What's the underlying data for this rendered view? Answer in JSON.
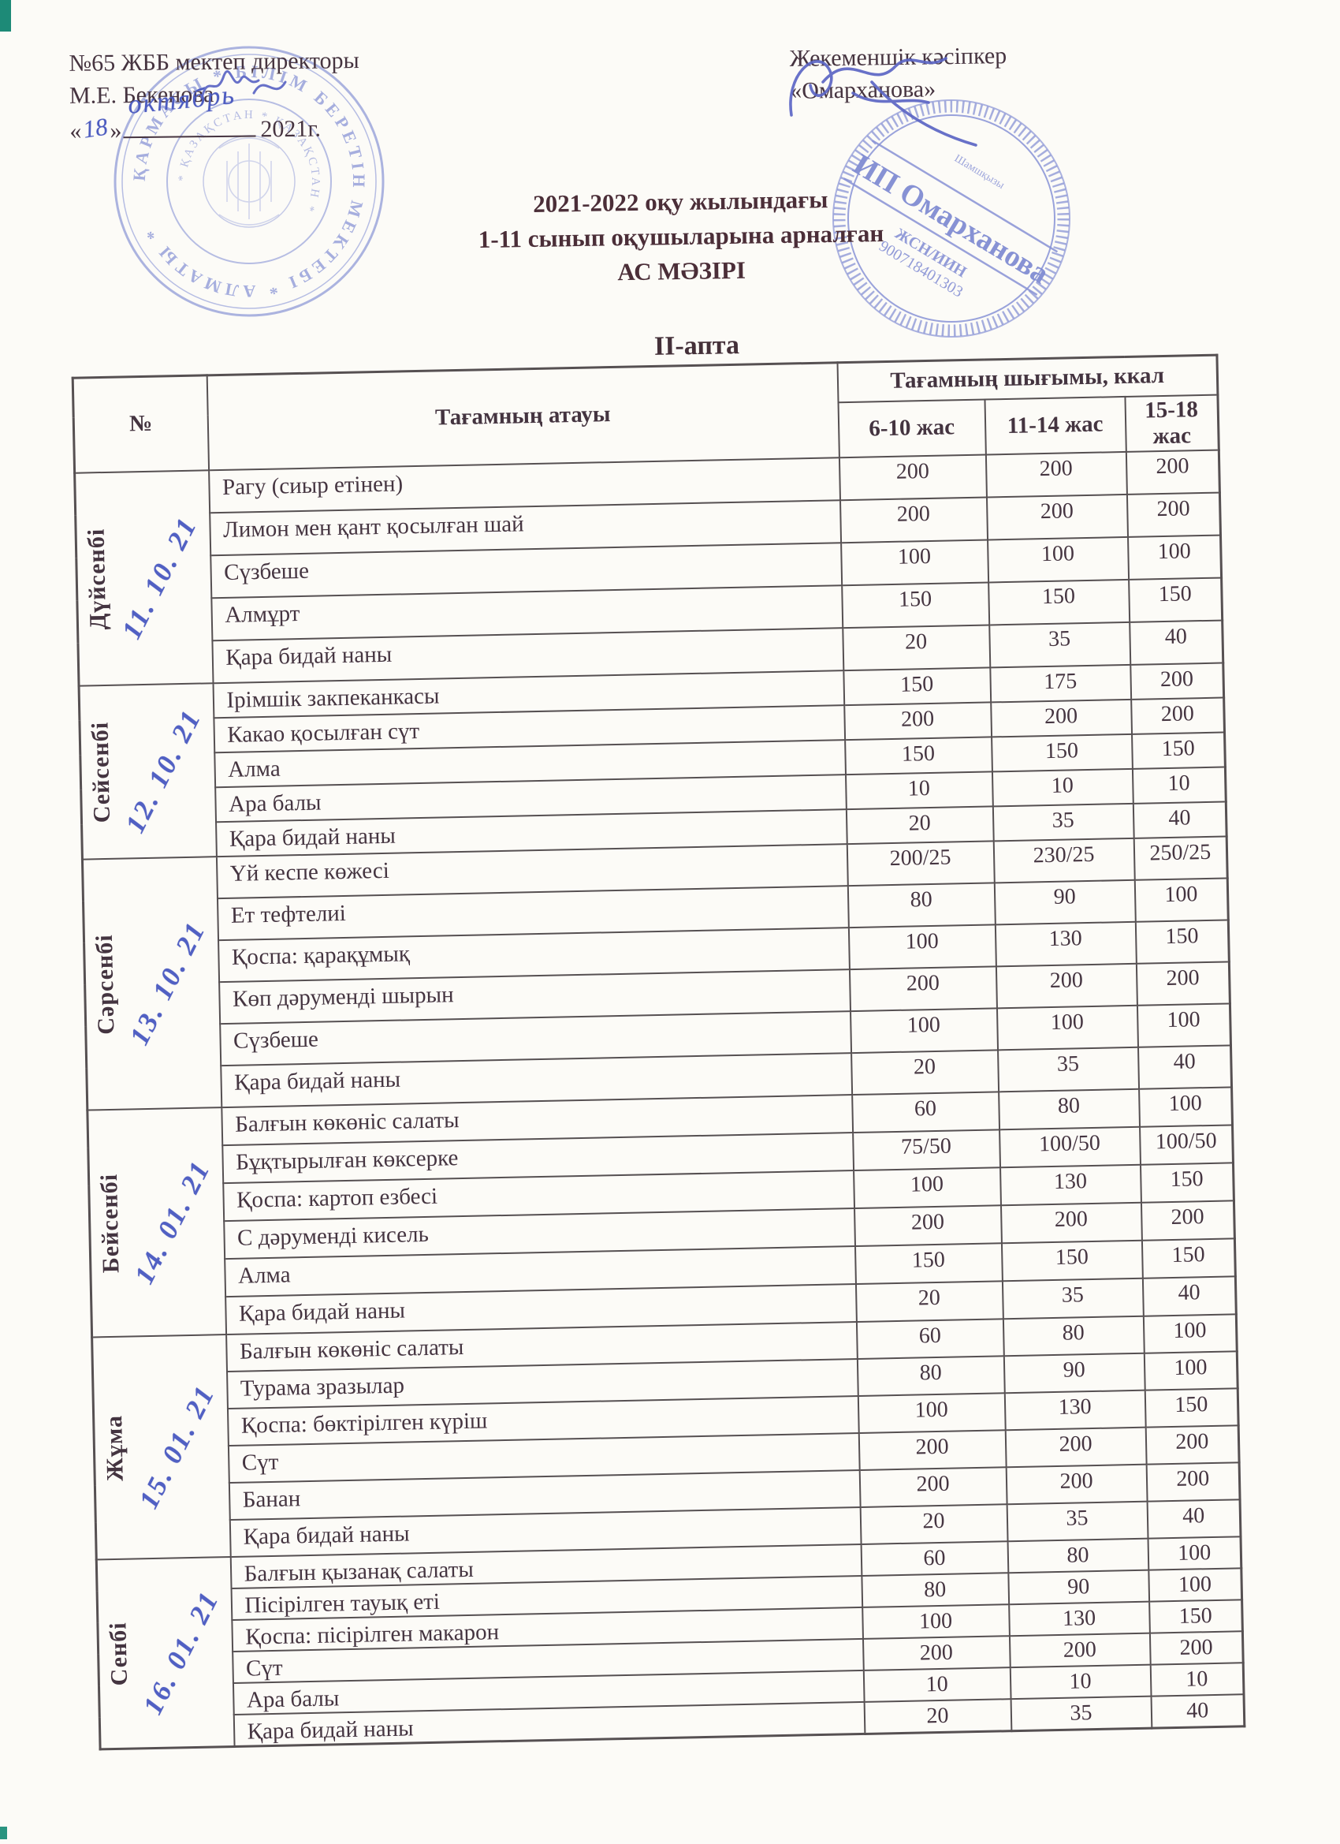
{
  "page": {
    "header_left": {
      "line1": "№65 ЖББ мектеп директоры",
      "line2": "М.Е. Бекенова",
      "quote_open": "«",
      "quote_close": "»",
      "hw_day": "18",
      "hw_month": "октябрь",
      "year": "2021г."
    },
    "header_right": {
      "line1": "Жекеменшік кәсіпкер",
      "line2": "«Омарханова»"
    },
    "school_stamp": {
      "ring_text": "ҚАРМАСЫ * БІЛІМ БЕРЕТІН МЕКТЕБІ * АЛМАТЫ *",
      "inner_text": "* ҚАЗАҚСТАН * ҚАЗАҚСТАН *"
    },
    "entrepreneur_stamp": {
      "name": "ИП Омарханова",
      "top_text": "Шамшқызы",
      "id_label": "ЖСН/ИИН",
      "id_number": "900718401303"
    },
    "title": {
      "line1": "2021-2022 оқу жылындағы",
      "line2": "1-11 сынып оқушыларына арналған",
      "line3": "АС МӘЗІРІ"
    },
    "week_label": "II-апта"
  },
  "table": {
    "headers": {
      "num": "№",
      "dish": "Тағамның атауы",
      "output": "Тағамның шығымы, ккал",
      "age_groups": [
        "6-10 жас",
        "11-14 жас",
        "15-18 жас"
      ]
    },
    "days": [
      {
        "name": "Дүйсенбі",
        "date": "11. 10. 21",
        "rows": [
          [
            "Рагу (сиыр етінен)",
            "200",
            "200",
            "200"
          ],
          [
            "Лимон мен қант қосылған шай",
            "200",
            "200",
            "200"
          ],
          [
            "Сүзбеше",
            "100",
            "100",
            "100"
          ],
          [
            "Алмұрт",
            "150",
            "150",
            "150"
          ],
          [
            "Қара бидай наны",
            "20",
            "35",
            "40"
          ]
        ]
      },
      {
        "name": "Сейсенбі",
        "date": "12. 10. 21",
        "rows": [
          [
            "Ірімшік закпеканкасы",
            "150",
            "175",
            "200"
          ],
          [
            "Какао қосылған сүт",
            "200",
            "200",
            "200"
          ],
          [
            "Алма",
            "150",
            "150",
            "150"
          ],
          [
            "Ара балы",
            "10",
            "10",
            "10"
          ],
          [
            "Қара бидай наны",
            "20",
            "35",
            "40"
          ]
        ]
      },
      {
        "name": "Сәрсенбі",
        "date": "13. 10. 21",
        "rows": [
          [
            "Үй кеспе көжесі",
            "200/25",
            "230/25",
            "250/25"
          ],
          [
            "Ет тефтелиі",
            "80",
            "90",
            "100"
          ],
          [
            "Қоспа: қарақұмық",
            "100",
            "130",
            "150"
          ],
          [
            "Көп дәруменді шырын",
            "200",
            "200",
            "200"
          ],
          [
            "Сүзбеше",
            "100",
            "100",
            "100"
          ],
          [
            "Қара бидай наны",
            "20",
            "35",
            "40"
          ]
        ]
      },
      {
        "name": "Бейсенбі",
        "date": "14. 01. 21",
        "rows": [
          [
            "Балғын көкөніс салаты",
            "60",
            "80",
            "100"
          ],
          [
            "Бұқтырылған көксерке",
            "75/50",
            "100/50",
            "100/50"
          ],
          [
            "Қоспа: картоп езбесі",
            "100",
            "130",
            "150"
          ],
          [
            "С дәруменді кисель",
            "200",
            "200",
            "200"
          ],
          [
            "Алма",
            "150",
            "150",
            "150"
          ],
          [
            "Қара бидай наны",
            "20",
            "35",
            "40"
          ]
        ]
      },
      {
        "name": "Жұма",
        "date": "15. 01. 21",
        "rows": [
          [
            "Балғын көкөніс салаты",
            "60",
            "80",
            "100"
          ],
          [
            "Турама зразылар",
            "80",
            "90",
            "100"
          ],
          [
            "Қоспа: бөктірілген күріш",
            "100",
            "130",
            "150"
          ],
          [
            "Сүт",
            "200",
            "200",
            "200"
          ],
          [
            "Банан",
            "200",
            "200",
            "200"
          ],
          [
            "Қара бидай наны",
            "20",
            "35",
            "40"
          ]
        ]
      },
      {
        "name": "Сенбі",
        "date": "16. 01. 21",
        "rows": [
          [
            "Балғын қызанақ салаты",
            "60",
            "80",
            "100"
          ],
          [
            "Пісірілген тауық еті",
            "80",
            "90",
            "100"
          ],
          [
            "Қоспа: пісірілген макарон",
            "100",
            "130",
            "150"
          ],
          [
            "Сүт",
            "200",
            "200",
            "200"
          ],
          [
            "Ара балы",
            "10",
            "10",
            "10"
          ],
          [
            "Қара бидай наны",
            "20",
            "35",
            "40"
          ]
        ]
      }
    ]
  },
  "colors": {
    "paper": "#fcfbf7",
    "text_dark": "#463440",
    "table_border": "#565052",
    "ink_blue": "#4d5cc0",
    "stamp_blue": "#7e89d2",
    "scanner_mark_green": "#1d8a77"
  }
}
